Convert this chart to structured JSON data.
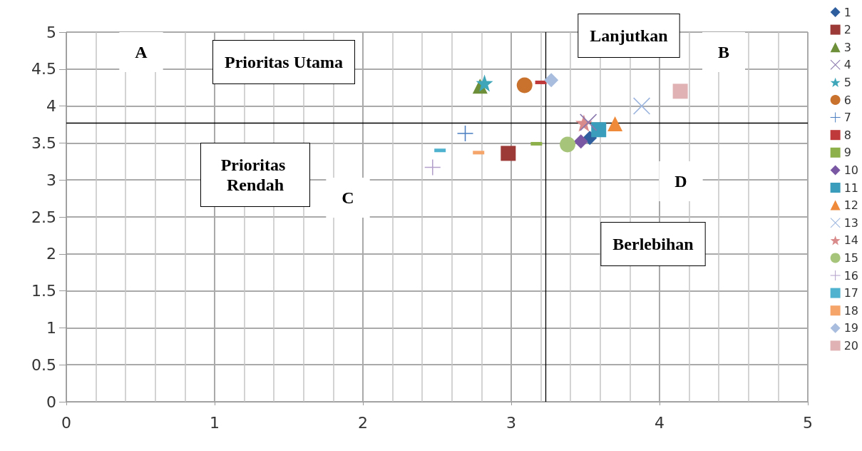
{
  "chart_data": {
    "type": "scatter",
    "xlim": [
      0,
      5
    ],
    "xticks": [
      0,
      1,
      2,
      3,
      4,
      5
    ],
    "ylim": [
      0,
      5
    ],
    "yticks": [
      0,
      0.5,
      1,
      1.5,
      2,
      2.5,
      3,
      3.5,
      4,
      4.5,
      5
    ],
    "grid": true,
    "legend": "right",
    "annotations": [
      "A",
      "Prioritas Utama",
      "Lanjutkan",
      "B",
      "Prioritas Rendah",
      "C",
      "D",
      "Berlebihan"
    ],
    "ref_lines": [
      {
        "axis": "x",
        "value": 3.23,
        "label": null,
        "color": "#000000"
      },
      {
        "axis": "y",
        "value": 3.77,
        "label": null,
        "color": "#000000"
      }
    ],
    "series": [
      {
        "name": "1",
        "color": "#2e5e9e",
        "marker": "diamond",
        "x": [
          3.53
        ],
        "values": [
          3.57
        ]
      },
      {
        "name": "2",
        "color": "#9b3a36",
        "marker": "square",
        "x": [
          2.98
        ],
        "values": [
          3.36
        ]
      },
      {
        "name": "3",
        "color": "#6e8f3a",
        "marker": "triangle",
        "x": [
          2.79
        ],
        "values": [
          4.27
        ]
      },
      {
        "name": "4",
        "color": "#8a77ad",
        "marker": "cross",
        "x": [
          3.52
        ],
        "values": [
          3.78
        ]
      },
      {
        "name": "5",
        "color": "#3ea6b8",
        "marker": "star",
        "x": [
          2.82
        ],
        "values": [
          4.31
        ]
      },
      {
        "name": "6",
        "color": "#c8722e",
        "marker": "circle",
        "x": [
          3.09
        ],
        "values": [
          4.28
        ]
      },
      {
        "name": "7",
        "color": "#4a7ec0",
        "marker": "plus",
        "x": [
          2.69
        ],
        "values": [
          3.63
        ]
      },
      {
        "name": "8",
        "color": "#c0393a",
        "x": [
          3.2
        ],
        "values": [
          4.32
        ]
      },
      {
        "name": "9",
        "color": "#8db04a",
        "x": [
          3.17
        ],
        "values": [
          3.49
        ]
      },
      {
        "name": "10",
        "color": "#7a57a3",
        "marker": "diamond",
        "x": [
          3.47
        ],
        "values": [
          3.52
        ]
      },
      {
        "name": "11",
        "color": "#3a9dbb",
        "marker": "square",
        "x": [
          3.59
        ],
        "values": [
          3.68
        ]
      },
      {
        "name": "12",
        "color": "#ee8a3a",
        "marker": "triangle",
        "x": [
          3.7
        ],
        "values": [
          3.76
        ]
      },
      {
        "name": "13",
        "color": "#9db6de",
        "marker": "cross",
        "x": [
          3.88
        ],
        "values": [
          4.0
        ]
      },
      {
        "name": "14",
        "color": "#d98a8a",
        "marker": "star",
        "x": [
          3.49
        ],
        "values": [
          3.77
        ]
      },
      {
        "name": "15",
        "color": "#a7c57a",
        "marker": "circle",
        "x": [
          3.38
        ],
        "values": [
          3.48
        ]
      },
      {
        "name": "16",
        "color": "#b29fca",
        "marker": "plus",
        "x": [
          2.47
        ],
        "values": [
          3.17
        ]
      },
      {
        "name": "17",
        "color": "#4fb3cf",
        "x": [
          2.52
        ],
        "values": [
          3.4
        ]
      },
      {
        "name": "18",
        "color": "#f5a46a",
        "x": [
          2.78
        ],
        "values": [
          3.37
        ]
      },
      {
        "name": "19",
        "color": "#a9bddf",
        "marker": "diamond",
        "x": [
          3.27
        ],
        "values": [
          4.35
        ]
      },
      {
        "name": "20",
        "color": "#e0b2b3",
        "marker": "square",
        "x": [
          4.14
        ],
        "values": [
          4.2
        ]
      }
    ]
  }
}
